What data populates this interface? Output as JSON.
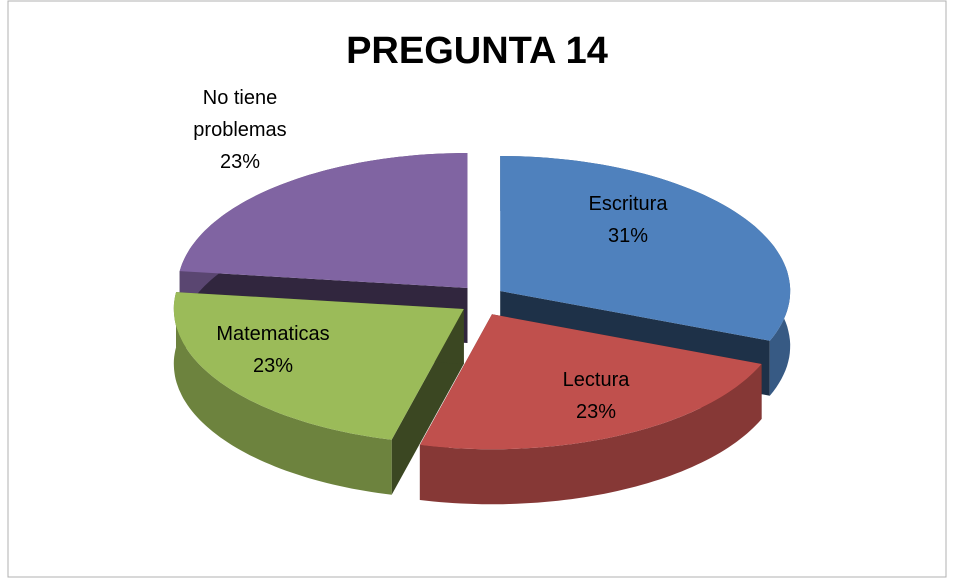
{
  "chart_data": {
    "type": "pie",
    "title": "PREGUNTA 14",
    "categories": [
      "Escritura",
      "Lectura",
      "Matematicas",
      "No tiene problemas"
    ],
    "values": [
      31,
      23,
      23,
      23
    ],
    "value_labels": [
      "31%",
      "23%",
      "23%",
      "23%"
    ],
    "colors": [
      "#4f81bd",
      "#c0504d",
      "#9bbb59",
      "#8064a2"
    ]
  }
}
